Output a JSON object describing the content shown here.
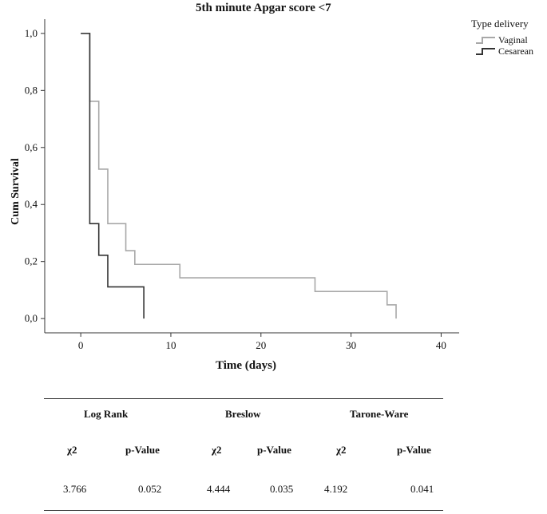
{
  "chart_data": {
    "type": "line",
    "step": true,
    "title": "5th minute Apgar score <7",
    "xlabel": "Time (days)",
    "ylabel": "Cum Survival",
    "xlim": [
      -4,
      42
    ],
    "ylim": [
      -0.05,
      1.05
    ],
    "x_ticks": [
      0,
      10,
      20,
      30,
      40
    ],
    "y_ticks": [
      0.0,
      0.2,
      0.4,
      0.6,
      0.8,
      1.0
    ],
    "x_tick_labels": [
      "0",
      "10",
      "20",
      "30",
      "40"
    ],
    "y_tick_labels": [
      "0,0",
      "0,2",
      "0,4",
      "0,6",
      "0,8",
      "1,0"
    ],
    "legend_title": "Type delivery",
    "legend_position": "top-right",
    "series": [
      {
        "name": "Vaginal",
        "color": "#a8a8a8",
        "x": [
          1,
          2,
          3,
          5,
          6,
          11,
          26,
          34,
          35
        ],
        "y": [
          0.762,
          0.524,
          0.333,
          0.238,
          0.19,
          0.143,
          0.095,
          0.048,
          0.0
        ]
      },
      {
        "name": "Cesarean",
        "color": "#333333",
        "x": [
          0.5,
          1,
          2,
          3,
          7
        ],
        "y": [
          1.0,
          0.333,
          0.222,
          0.111,
          0.0
        ]
      }
    ]
  },
  "stats_table": {
    "groups": [
      "Log Rank",
      "Breslow",
      "Tarone-Ware"
    ],
    "subheaders": [
      "χ2",
      "p-Value",
      "χ2",
      "p-Value",
      "χ2",
      "p-Value"
    ],
    "values": [
      "3.766",
      "0.052",
      "4.444",
      "0.035",
      "4.192",
      "0.041"
    ]
  }
}
